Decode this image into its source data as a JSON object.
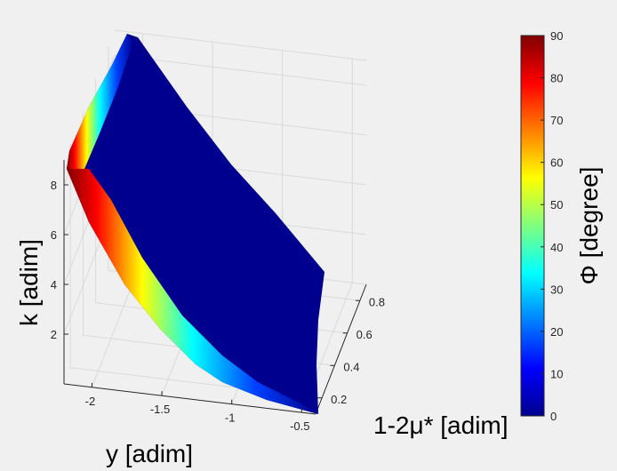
{
  "chart_data": {
    "type": "scatter",
    "subtype": "3d-surface-scatter",
    "xlabel": "y [adim]",
    "ylabel": "1-2μ* [adim]",
    "zlabel": "k [adim]",
    "x_ticks": [
      "-2",
      "-1.5",
      "-1",
      "-0.5"
    ],
    "y_ticks": [
      "0.2",
      "0.4",
      "0.6",
      "0.8"
    ],
    "z_ticks": [
      "2",
      "4",
      "6",
      "8"
    ],
    "xlim": [
      -2.2,
      -0.4
    ],
    "ylim": [
      0.1,
      0.9
    ],
    "zlim": [
      0,
      9
    ],
    "colorbar": {
      "label": "Φ [degree]",
      "ticks": [
        "0",
        "10",
        "20",
        "30",
        "40",
        "50",
        "60",
        "70",
        "80",
        "90"
      ],
      "range": [
        0,
        90
      ],
      "colormap": "jet"
    },
    "grid": true,
    "surface": {
      "color_at_leading_edge_deg": 90,
      "color_interior_deg": 0
    }
  }
}
